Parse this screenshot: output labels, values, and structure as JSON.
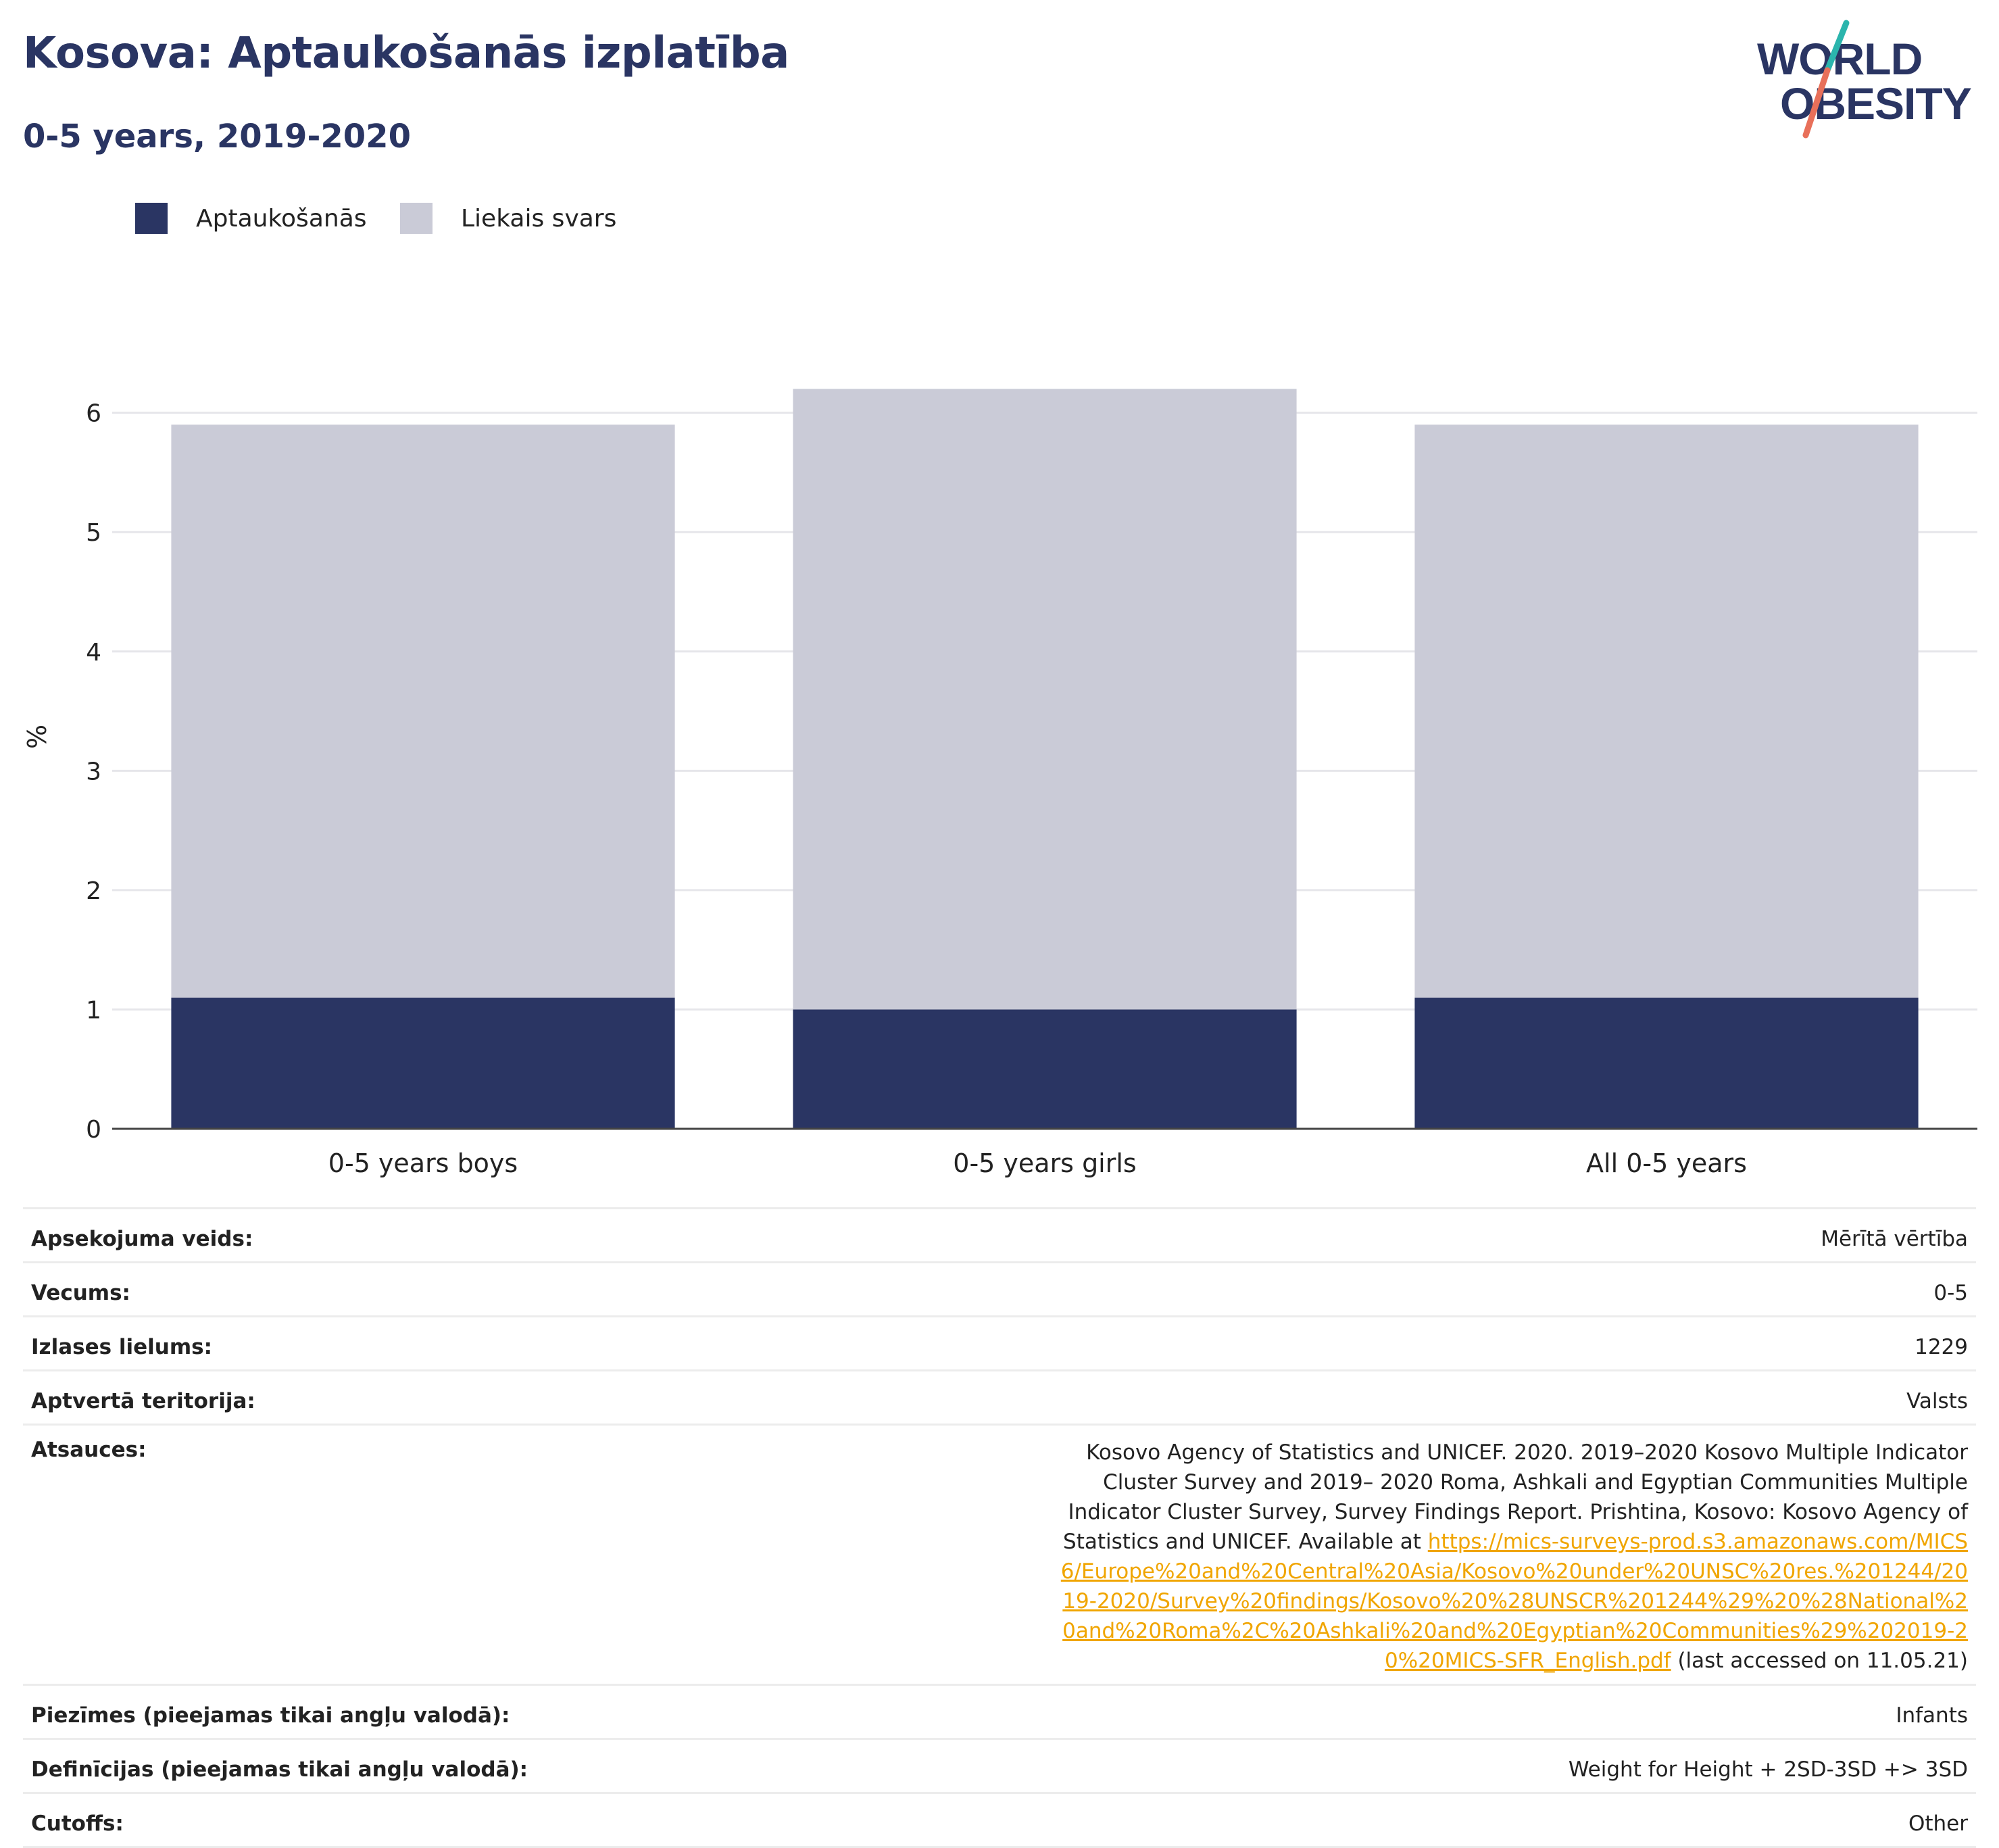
{
  "header": {
    "title": "Kosova: Aptaukošanās izplatība",
    "subtitle": "0-5 years, 2019-2020"
  },
  "logo": {
    "line1": "WORLD",
    "line2": "OBESITY",
    "colors": {
      "text": "#2a3563",
      "slash_top": "#2bb5ad",
      "slash_bottom": "#e8705a"
    }
  },
  "legend": [
    {
      "label": "Aptaukošanās",
      "color": "#2a3563"
    },
    {
      "label": "Liekais svars",
      "color": "#cacbd7"
    }
  ],
  "chart_data": {
    "type": "bar",
    "stacked": true,
    "categories": [
      "0-5 years boys",
      "0-5 years girls",
      "All 0-5 years"
    ],
    "series": [
      {
        "name": "Aptaukošanās",
        "values": [
          1.1,
          1.0,
          1.1
        ],
        "color": "#2a3563"
      },
      {
        "name": "Liekais svars",
        "values": [
          4.8,
          5.2,
          4.8
        ],
        "color": "#cacbd7"
      }
    ],
    "ylabel": "%",
    "ylim": [
      0,
      6.4
    ],
    "yticks": [
      "0",
      "1",
      "2",
      "3",
      "4",
      "5",
      "6"
    ],
    "grid": true,
    "legend_position": "top-left"
  },
  "meta": [
    {
      "key": "Apsekojuma veids:",
      "value": "Mērītā vērtība"
    },
    {
      "key": "Vecums:",
      "value": "0-5"
    },
    {
      "key": "Izlases lielums:",
      "value": "1229"
    },
    {
      "key": "Aptvertā teritorija:",
      "value": "Valsts"
    }
  ],
  "reference": {
    "key": "Atsauces:",
    "text_before": "Kosovo Agency of Statistics and UNICEF. 2020. 2019–2020 Kosovo Multiple Indicator Cluster Survey and 2019– 2020 Roma, Ashkali and Egyptian Communities Multiple Indicator Cluster Survey, Survey Findings Report. Prishtina, Kosovo: Kosovo Agency of Statistics and UNICEF. Available at ",
    "link": "https://mics-surveys-prod.s3.amazonaws.com/MICS6/Europe%20and%20Central%20Asia/Kosovo%20under%20UNSC%20res.%201244/2019-2020/Survey%20findings/Kosovo%20%28UNSCR%201244%29%20%28National%20and%20Roma%2C%20Ashkali%20and%20Egyptian%20Communities%29%202019-20%20MICS-SFR_English.pdf",
    "text_after": " (last accessed on 11.05.21)"
  },
  "meta_after": [
    {
      "key": "Piezīmes (pieejamas tikai angļu valodā):",
      "value": "Infants"
    },
    {
      "key": "Definīcijas (pieejamas tikai angļu valodā):",
      "value": "Weight for Height + 2SD-3SD +> 3SD"
    },
    {
      "key": "Cutoffs:",
      "value": "Other"
    }
  ]
}
